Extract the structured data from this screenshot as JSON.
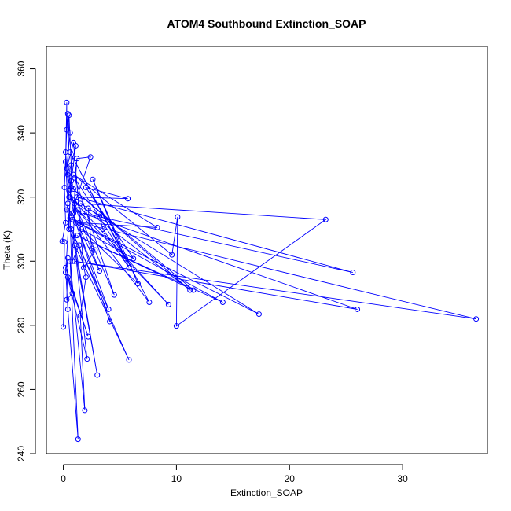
{
  "chart_data": {
    "type": "line",
    "title": "ATOM4 Southbound Extinction_SOAP",
    "xlabel": "Extinction_SOAP",
    "ylabel": "Theta (K)",
    "xlim": [
      -1.5,
      37.5
    ],
    "ylim": [
      240,
      367
    ],
    "xticks": [
      0,
      10,
      20,
      30
    ],
    "yticks": [
      240,
      260,
      280,
      300,
      320,
      340,
      360
    ],
    "grid": false,
    "series_color": "#0000ff",
    "series": [
      {
        "values": [
          [
            0.0,
            279.5
          ],
          [
            0.1,
            306.0
          ],
          [
            -0.1,
            306.2
          ],
          [
            0.2,
            312.0
          ],
          [
            0.1,
            323.0
          ],
          [
            0.3,
            341.0
          ],
          [
            0.3,
            349.5
          ],
          [
            0.2,
            331.0
          ],
          [
            0.4,
            318.0
          ],
          [
            0.5,
            310.0
          ],
          [
            0.6,
            320.0
          ],
          [
            0.7,
            330.0
          ],
          [
            0.5,
            345.5
          ],
          [
            0.4,
            327.0
          ],
          [
            0.9,
            315.0
          ],
          [
            1.2,
            332.0
          ],
          [
            2.4,
            332.5
          ],
          [
            1.0,
            318.0
          ],
          [
            0.8,
            300.0
          ],
          [
            1.4,
            305.0
          ],
          [
            2.0,
            295.0
          ],
          [
            1.5,
            283.0
          ],
          [
            1.9,
            253.5
          ],
          [
            0.6,
            300.0
          ],
          [
            1.3,
            244.5
          ],
          [
            0.4,
            285.0
          ],
          [
            0.2,
            298.0
          ],
          [
            2.2,
            276.5
          ],
          [
            0.4,
            295.0
          ],
          [
            2.1,
            269.5
          ],
          [
            1.0,
            305.0
          ],
          [
            5.8,
            269.2
          ],
          [
            0.7,
            310.0
          ],
          [
            3.0,
            264.5
          ],
          [
            0.9,
            308.0
          ],
          [
            4.0,
            285.0
          ],
          [
            1.1,
            312.0
          ],
          [
            4.1,
            281.2
          ],
          [
            0.8,
            315.0
          ],
          [
            3.2,
            297.0
          ],
          [
            0.5,
            322.0
          ],
          [
            4.5,
            289.5
          ],
          [
            1.0,
            326.0
          ],
          [
            5.5,
            300.8
          ],
          [
            0.6,
            334.0
          ],
          [
            7.6,
            287.2
          ],
          [
            1.3,
            316.0
          ],
          [
            9.3,
            286.5
          ],
          [
            0.9,
            319.0
          ],
          [
            11.2,
            291.0
          ],
          [
            0.7,
            323.0
          ],
          [
            11.5,
            291.0
          ],
          [
            1.2,
            308.0
          ],
          [
            14.1,
            287.2
          ],
          [
            0.8,
            313.0
          ],
          [
            17.3,
            283.5
          ],
          [
            1.5,
            318.0
          ],
          [
            23.2,
            313.0
          ],
          [
            10.0,
            279.8
          ],
          [
            10.1,
            313.8
          ],
          [
            9.6,
            302.0
          ],
          [
            0.9,
            327.0
          ],
          [
            8.3,
            310.5
          ],
          [
            1.4,
            312.0
          ],
          [
            36.5,
            282.0
          ],
          [
            1.0,
            300.0
          ],
          [
            26.0,
            285.0
          ],
          [
            1.7,
            315.0
          ],
          [
            25.6,
            296.5
          ],
          [
            1.2,
            320.0
          ],
          [
            5.7,
            319.5
          ],
          [
            2.0,
            323.0
          ],
          [
            6.2,
            300.8
          ],
          [
            1.6,
            310.0
          ],
          [
            6.6,
            293.0
          ],
          [
            2.6,
            325.5
          ],
          [
            5.8,
            298.0
          ],
          [
            3.5,
            310.0
          ],
          [
            3.2,
            314.0
          ],
          [
            2.2,
            316.5
          ],
          [
            2.5,
            304.0
          ],
          [
            2.8,
            303.5
          ],
          [
            1.8,
            298.0
          ],
          [
            0.9,
            337.0
          ],
          [
            0.3,
            329.0
          ],
          [
            0.6,
            340.0
          ],
          [
            0.4,
            346.0
          ],
          [
            0.2,
            334.0
          ],
          [
            0.5,
            320.0
          ],
          [
            0.3,
            316.0
          ],
          [
            0.6,
            313.5
          ],
          [
            0.8,
            290.0
          ],
          [
            0.3,
            288.0
          ],
          [
            0.4,
            301.0
          ],
          [
            0.2,
            296.5
          ],
          [
            0.7,
            325.0
          ],
          [
            1.1,
            336.0
          ],
          [
            0.5,
            327.5
          ],
          [
            0.6,
            324.0
          ],
          [
            0.9,
            322.5
          ]
        ]
      }
    ]
  }
}
